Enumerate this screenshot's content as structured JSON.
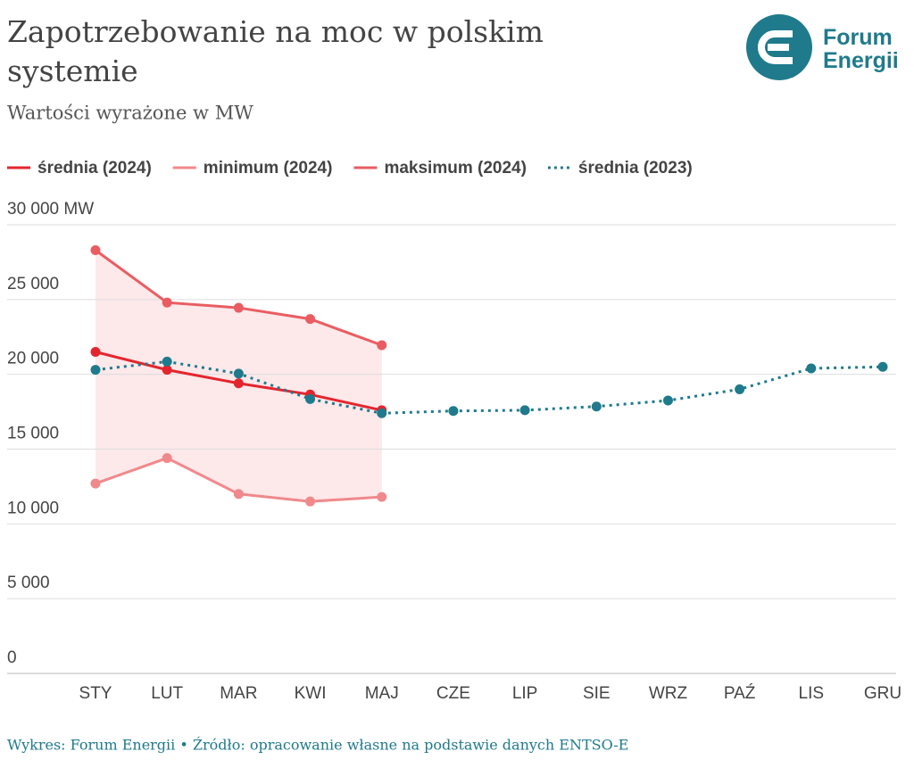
{
  "brand": "Forum Energii",
  "brand_line2": "Energii",
  "chart_data": {
    "type": "line",
    "title": "Zapotrzebowanie na moc w polskim systemie",
    "subtitle": "Wartości wyrażone w MW",
    "source": "Wykres: Forum Energii • Źródło: opracowanie własne na podstawie danych ENTSO-E",
    "categories": [
      "STY",
      "LUT",
      "MAR",
      "KWI",
      "MAJ",
      "CZE",
      "LIP",
      "SIE",
      "WRZ",
      "PAŹ",
      "LIS",
      "GRU"
    ],
    "series": [
      {
        "name": "średnia (2024)",
        "color": "#e3262e",
        "style": "solid",
        "values": [
          21500,
          20300,
          19400,
          18650,
          17600,
          null,
          null,
          null,
          null,
          null,
          null,
          null
        ]
      },
      {
        "name": "minimum (2024)",
        "color": "#f0898c",
        "style": "solid",
        "values": [
          12700,
          14400,
          12000,
          11500,
          11800,
          null,
          null,
          null,
          null,
          null,
          null,
          null
        ]
      },
      {
        "name": "maksimum (2024)",
        "color": "#e95d62",
        "style": "solid",
        "values": [
          28300,
          24800,
          24450,
          23700,
          21950,
          null,
          null,
          null,
          null,
          null,
          null,
          null
        ]
      },
      {
        "name": "średnia (2023)",
        "color": "#1f7a8c",
        "style": "dotted",
        "values": [
          20300,
          20850,
          20050,
          18350,
          17400,
          17550,
          17600,
          17850,
          18250,
          19000,
          20400,
          20500
        ]
      }
    ],
    "band": {
      "color": "#fde8ea"
    },
    "ylim": [
      0,
      30000
    ],
    "yticks": [
      0,
      {
        "value": 5000,
        "label": "5 000"
      },
      {
        "value": 10000,
        "label": "10 000"
      },
      {
        "value": 15000,
        "label": "15 000"
      },
      {
        "value": 20000,
        "label": "20 000"
      },
      {
        "value": 25000,
        "label": "25 000"
      },
      {
        "value": 30000,
        "label": "30 000 MW"
      }
    ],
    "grid": true
  }
}
